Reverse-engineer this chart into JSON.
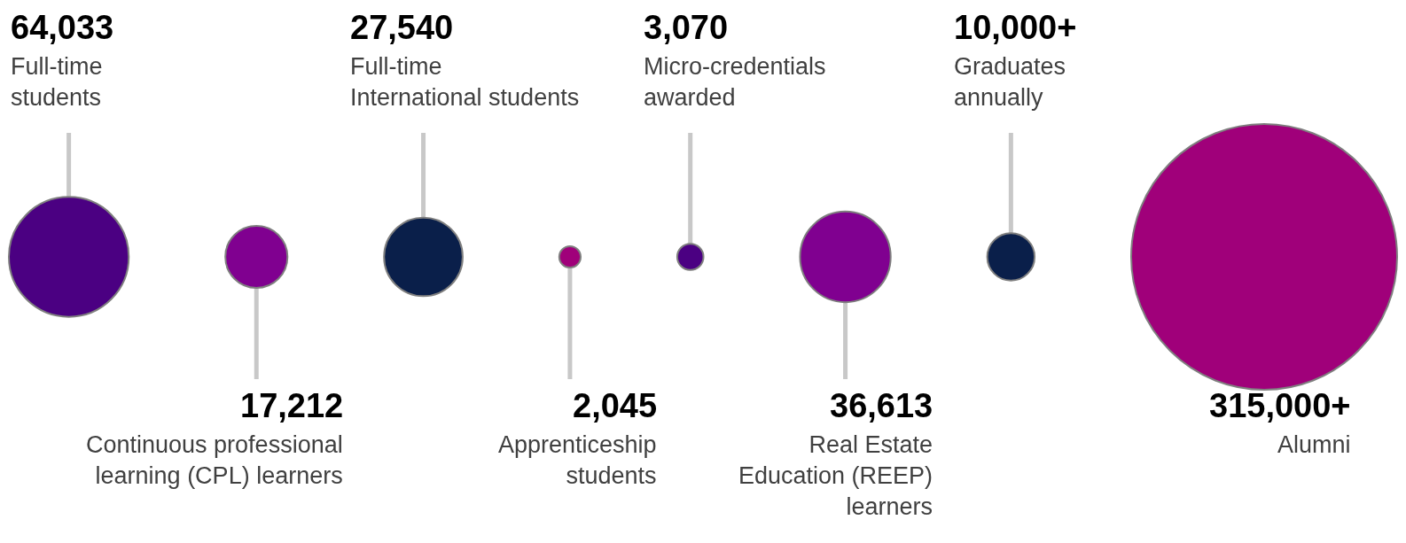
{
  "chart_data": {
    "type": "other",
    "categories": [
      "Full-time\nstudents",
      "Continuous professional\nlearning (CPL) learners",
      "Full-time\nInternational students",
      "Apprenticeship\nstudents",
      "Micro-credentials\nawarded",
      "Real Estate\nEducation (REEP)\nlearners",
      "Graduates\nannually",
      "Alumni"
    ],
    "values": [
      64033,
      17212,
      27540,
      2045,
      3070,
      36613,
      10000,
      315000
    ],
    "value_labels": [
      "64,033",
      "17,212",
      "27,540",
      "2,045",
      "3,070",
      "36,613",
      "10,000+",
      "315,000+"
    ],
    "colors": [
      "#4b0082",
      "#800090",
      "#0a1f4a",
      "#a0007a",
      "#4b0082",
      "#800090",
      "#0a1f4a",
      "#a0007a"
    ]
  }
}
